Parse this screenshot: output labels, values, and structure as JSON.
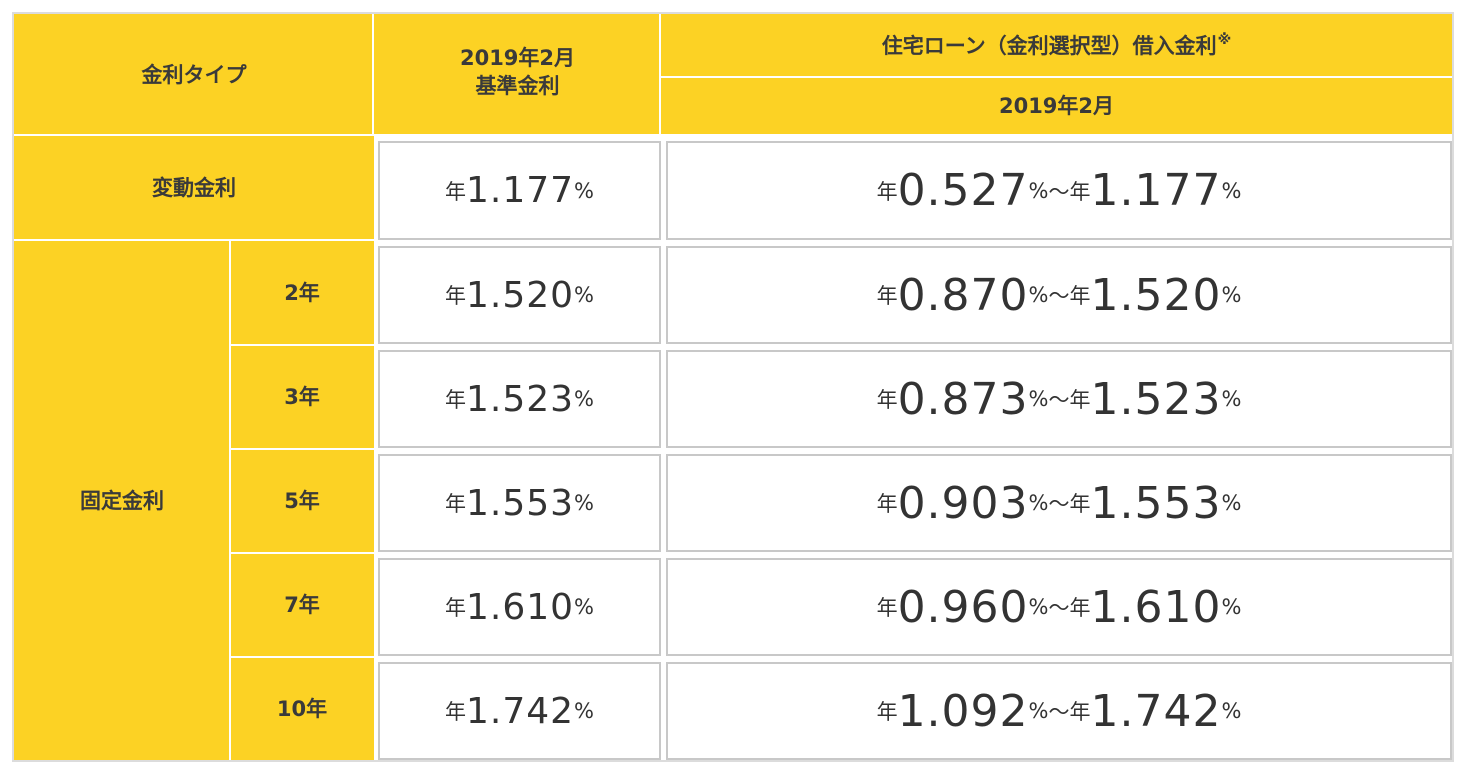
{
  "header": {
    "rate_type": "金利タイプ",
    "base_rate_line1": "2019年2月",
    "base_rate_line2": "基準金利",
    "loan_rate_title": "住宅ローン（金利選択型）借入金利",
    "loan_rate_mark": "※",
    "loan_rate_month": "2019年2月"
  },
  "units": {
    "year": "年",
    "percent": "%",
    "range_sep": "～"
  },
  "rows": [
    {
      "type_label": "変動金利",
      "base": "1.177",
      "low": "0.527",
      "high": "1.177"
    },
    {
      "term": "2年",
      "base": "1.520",
      "low": "0.870",
      "high": "1.520"
    },
    {
      "term": "3年",
      "base": "1.523",
      "low": "0.873",
      "high": "1.523"
    },
    {
      "term": "5年",
      "base": "1.553",
      "low": "0.903",
      "high": "1.553"
    },
    {
      "term": "7年",
      "base": "1.610",
      "low": "0.960",
      "high": "1.610"
    },
    {
      "term": "10年",
      "base": "1.742",
      "low": "1.092",
      "high": "1.742"
    }
  ],
  "fixed_label": "固定金利",
  "colors": {
    "header_bg": "#fcd224",
    "cell_border": "#c8c8c8",
    "text": "#333333"
  }
}
